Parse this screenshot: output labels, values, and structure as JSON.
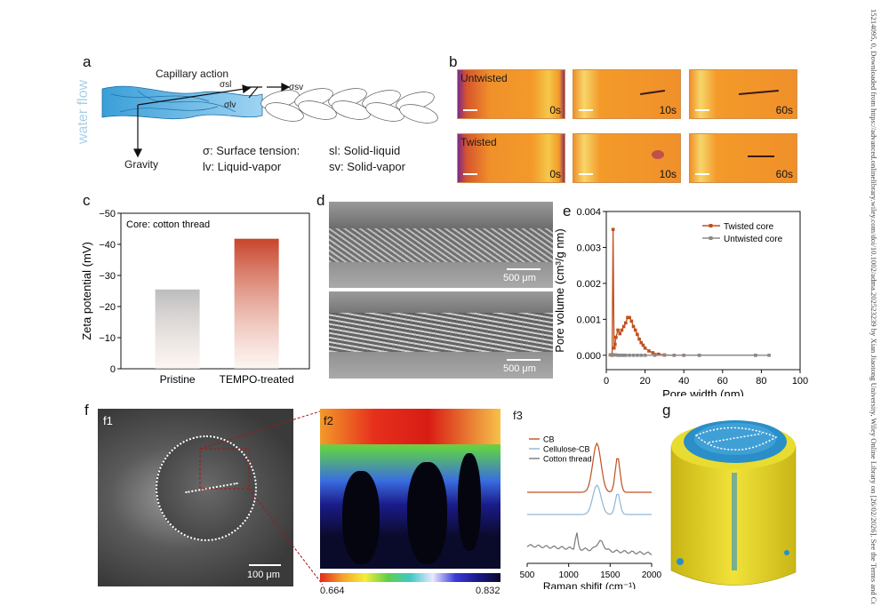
{
  "side_text": "15214095, 0, Downloaded from https://advanced.onlinelibrary.wiley.com/doi/10.1002/adma.202523239 by Xian Jiaotong University, Wiley Online Library on [26/02/2026]. See the Terms and Co",
  "panel_a": {
    "label": "a",
    "water_flow": "water flow",
    "capillary": "Capillary action",
    "sigma_sl": "σsl",
    "sigma_sv": "σsv",
    "sigma_lv": "σlv",
    "gravity": "Gravity",
    "legend_1": "σ: Surface tension:",
    "legend_2": "sl: Solid-liquid",
    "legend_3": "lv: Liquid-vapor",
    "legend_4": "sv: Solid-vapor"
  },
  "panel_b": {
    "label": "b",
    "untwisted": "Untwisted",
    "twisted": "Twisted",
    "t0": "0s",
    "t10": "10s",
    "t60": "60s"
  },
  "panel_c": {
    "label": "c",
    "annotation": "Core: cotton thread",
    "chart_data": {
      "type": "bar",
      "categories": [
        "Pristine",
        "TEMPO-treated"
      ],
      "values": [
        -25.5,
        -41.8
      ],
      "ylabel": "Zeta potential (mV)",
      "ylim": [
        0,
        -50
      ],
      "yticks": [
        "0",
        "−10",
        "−20",
        "−30",
        "−40",
        "−50"
      ],
      "colors": [
        "#bdbdbd",
        "#c8442a"
      ]
    }
  },
  "panel_d": {
    "label": "d",
    "scale_top": "500 μm",
    "scale_bottom": "500 μm"
  },
  "panel_e": {
    "label": "e",
    "chart_data": {
      "type": "line",
      "xlabel": "Pore width (nm)",
      "ylabel": "Pore volume (cm³/g nm)",
      "xlim": [
        0,
        100
      ],
      "ylim": [
        -0.0004,
        0.004
      ],
      "xticks": [
        "0",
        "20",
        "40",
        "60",
        "80",
        "100"
      ],
      "yticks": [
        "0.000",
        "0.001",
        "0.002",
        "0.003",
        "0.004"
      ],
      "legend": "top-right",
      "series": [
        {
          "name": "Twisted core",
          "color": "#c0501f",
          "x": [
            3.0,
            3.5,
            4.0,
            4.5,
            5.0,
            6.0,
            7.0,
            8.0,
            9.0,
            10.0,
            11.0,
            12.0,
            13.0,
            14.0,
            15.0,
            16.0,
            17.0,
            18.0,
            19.0,
            20.0,
            22.0,
            24.0,
            27.0,
            30.0,
            35.0,
            40.0,
            48.0,
            77.0
          ],
          "y": [
            0.0,
            0.0035,
            0.0002,
            0.0003,
            0.0005,
            0.0007,
            0.0006,
            0.0007,
            0.0008,
            0.0009,
            0.00105,
            0.00105,
            0.00095,
            0.0008,
            0.0007,
            0.00058,
            0.00045,
            0.00035,
            0.00028,
            0.0002,
            0.00012,
            7e-05,
            3e-05,
            1e-05,
            0.0,
            0.0,
            0.0,
            0.0
          ]
        },
        {
          "name": "Untwisted core",
          "color": "#8a8a8a",
          "x": [
            2.0,
            3.0,
            4.0,
            5.0,
            6.0,
            7.0,
            8.0,
            9.0,
            10.0,
            12.0,
            14.0,
            16.0,
            18.0,
            20.0,
            25.0,
            30.0,
            35.0,
            40.0,
            48.0,
            77.0,
            84.0
          ],
          "y": [
            1e-05,
            2e-05,
            1e-05,
            1e-05,
            0.0,
            0.0,
            0.0,
            0.0,
            0.0,
            0.0,
            0.0,
            0.0,
            0.0,
            0.0,
            0.0,
            0.0,
            0.0,
            0.0,
            0.0,
            0.0,
            0.0
          ]
        }
      ]
    }
  },
  "panel_f": {
    "label": "f",
    "f1": "f1",
    "f2": "f2",
    "f3": "f3",
    "scale": "100 μm",
    "cbar_min": "0.664",
    "cbar_max": "0.832",
    "raman": {
      "chart_data": {
        "type": "line",
        "xlabel": "Raman shifit (cm⁻¹)",
        "xlim": [
          500,
          2000
        ],
        "xticks": [
          "500",
          "1000",
          "1500",
          "2000"
        ],
        "legend": "top-left",
        "series": [
          {
            "name": "CB",
            "color": "#c0501f"
          },
          {
            "name": "Cellulose-CB",
            "color": "#8fb6d6"
          },
          {
            "name": "Cotton thread",
            "color": "#7a7a7a"
          }
        ]
      }
    }
  },
  "panel_g": {
    "label": "g"
  }
}
